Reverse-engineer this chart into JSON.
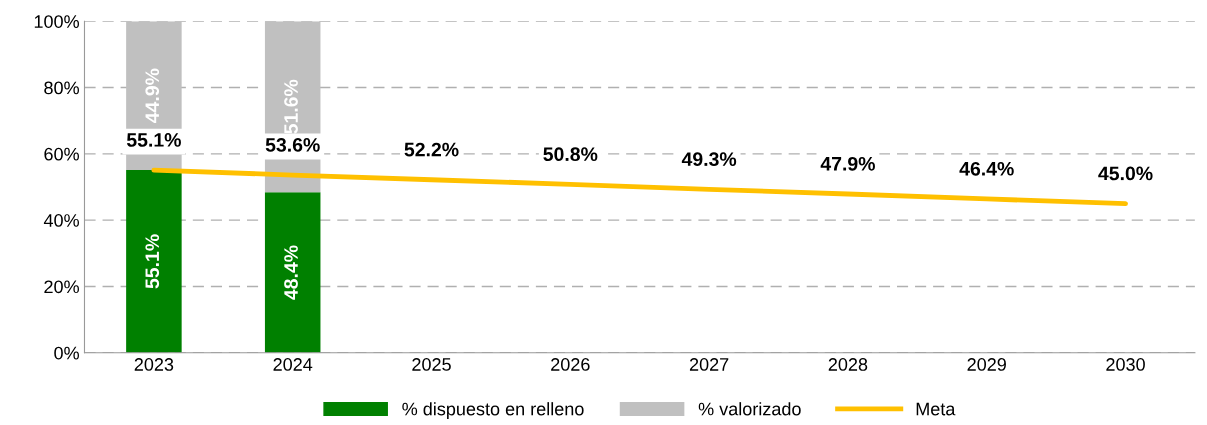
{
  "chart_data": {
    "type": "bar",
    "stacked": true,
    "categories": [
      "2023",
      "2024",
      "2025",
      "2026",
      "2027",
      "2028",
      "2029",
      "2030"
    ],
    "series": [
      {
        "name": "% dispuesto en relleno",
        "color": "#008000",
        "values": [
          55.1,
          48.4,
          null,
          null,
          null,
          null,
          null,
          null
        ],
        "value_labels": [
          "55.1%",
          "48.4%",
          null,
          null,
          null,
          null,
          null,
          null
        ]
      },
      {
        "name": "% valorizado",
        "color": "#c0c0c0",
        "values": [
          44.9,
          51.6,
          null,
          null,
          null,
          null,
          null,
          null
        ],
        "value_labels": [
          "44.9%",
          "51.6%",
          null,
          null,
          null,
          null,
          null,
          null
        ]
      },
      {
        "name": "Meta",
        "type": "line",
        "color": "#ffc000",
        "values": [
          55.1,
          53.6,
          52.2,
          50.8,
          49.3,
          47.9,
          46.4,
          45.0
        ],
        "value_labels": [
          "55.1%",
          "53.6%",
          "52.2%",
          "50.8%",
          "49.3%",
          "47.9%",
          "46.4%",
          "45.0%"
        ]
      }
    ],
    "ylim": [
      0,
      100
    ],
    "yticks": [
      {
        "value": 0,
        "label": "0%"
      },
      {
        "value": 20,
        "label": "20%"
      },
      {
        "value": 40,
        "label": "40%"
      },
      {
        "value": 60,
        "label": "60%"
      },
      {
        "value": 80,
        "label": "80%"
      },
      {
        "value": 100,
        "label": "100%"
      }
    ],
    "grid": "y",
    "legend": "bottom",
    "marker": "none",
    "line_style": "solid"
  }
}
